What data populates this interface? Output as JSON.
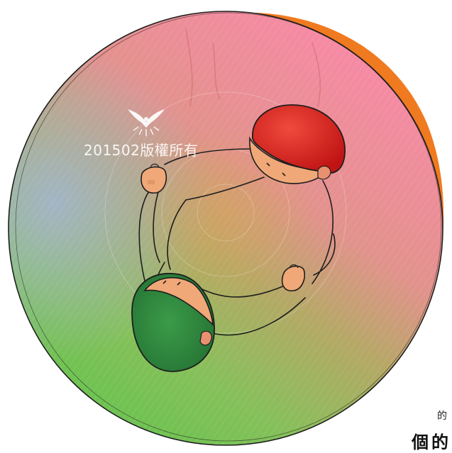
{
  "watermark": {
    "text": "201502版權所有",
    "icon": "bird-emblem-icon"
  },
  "corner_caption": {
    "line1": "的",
    "line2": "個的"
  },
  "colors": {
    "disc_top": "#f28aa0",
    "disc_left": "#9bb0c8",
    "disc_bottom": "#7dc45a",
    "rim_orange": "#f07a20",
    "person_red": "#e8221e",
    "person_green": "#2f8a3c",
    "skin": "#f0a878",
    "outline": "#1e1e1e"
  }
}
